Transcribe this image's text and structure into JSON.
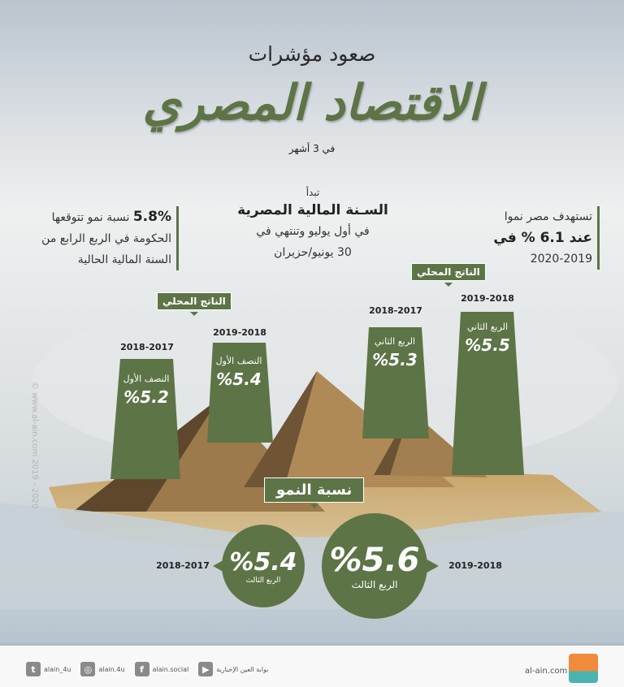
{
  "header": {
    "subtitle": "صعود مؤشرات",
    "title": "الاقتصاد المصري",
    "period": "في 3 أشهر"
  },
  "info_left": {
    "value": "5.8%",
    "line1": "نسبة نمو تتوقعها",
    "line2": "الحكومة في الربع الرابع من",
    "line3": "السنة المالية الحالية"
  },
  "info_center": {
    "intro": "تبدأ",
    "heading": "السـنة المالية المصرية",
    "line1": "في أول يوليو وتنتهي في",
    "line2": "30 يونيو/حزيران"
  },
  "info_right": {
    "line1": "تستهدف مصر نموا",
    "line2": "عند 6.1 % في",
    "line3": "2020-2019"
  },
  "gdp_tag": "الناتج المحلي",
  "bars": [
    {
      "year": "2018-2017",
      "period": "النصف الأول",
      "value": "%5.2"
    },
    {
      "year": "2019-2018",
      "period": "النصف الأول",
      "value": "%5.4"
    },
    {
      "year": "2018-2017",
      "period": "الربع الثاني",
      "value": "%5.3"
    },
    {
      "year": "2019-2018",
      "period": "الربع الثاني",
      "value": "%5.5"
    }
  ],
  "growth": {
    "tag": "نسبة النمو",
    "small": {
      "year": "2018-2017",
      "value": "%5.4",
      "period": "الربع الثالث"
    },
    "large": {
      "year": "2019-2018",
      "value": "%5.6",
      "period": "الربع الثالث"
    }
  },
  "watermark": "© www.al-ain.com 2019 - 2020",
  "footer": {
    "twitter": "alain_4u",
    "instagram": "alain.4u",
    "facebook": "alain.social",
    "youtube": "بوابة العين الإخبارية",
    "site": "al-ain.com",
    "logo_text": "العين الإخبارية"
  },
  "colors": {
    "accent": "#5d7446"
  }
}
